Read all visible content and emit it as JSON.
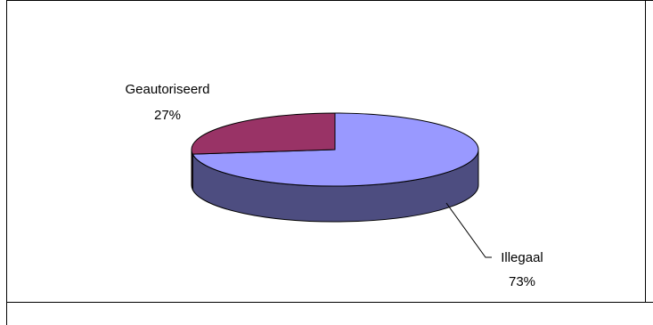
{
  "chart_data": {
    "type": "pie",
    "title": "",
    "three_d": true,
    "categories": [
      "Illegaal",
      "Geautoriseerd"
    ],
    "values": [
      73,
      27
    ],
    "labels": [
      "73%",
      "27%"
    ],
    "colors": {
      "Illegaal": "#9999ff",
      "Geautoriseerd": "#993366"
    },
    "legend": "none"
  }
}
